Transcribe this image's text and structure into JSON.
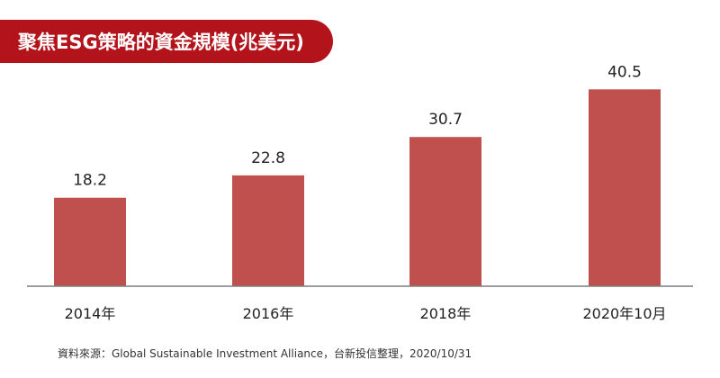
{
  "title": "聚焦ESG策略的資金規模(兆美元)",
  "source": "資料來源：Global Sustainable Investment Alliance，台新投信整理，2020/10/31",
  "colors": {
    "banner": "#b3141b",
    "bar": "#c0504d",
    "axis": "#7f7f7f",
    "text": "#222222"
  },
  "chart_data": {
    "type": "bar",
    "categories": [
      "2014年",
      "2016年",
      "2018年",
      "2020年10月"
    ],
    "values": [
      18.2,
      22.8,
      30.7,
      40.5
    ],
    "data_labels": [
      "18.2",
      "22.8",
      "30.7",
      "40.5"
    ],
    "title": "聚焦ESG策略的資金規模(兆美元)",
    "xlabel": "",
    "ylabel": "",
    "ylim": [
      0,
      50
    ],
    "grid": false,
    "legend": "none"
  }
}
